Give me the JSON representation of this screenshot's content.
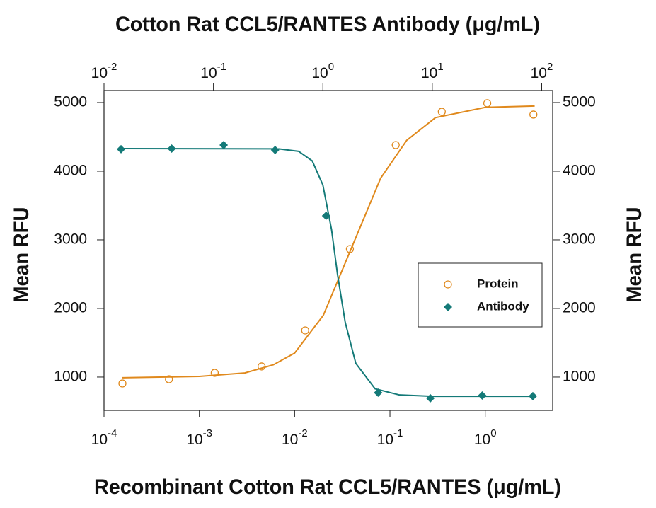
{
  "chart_data": {
    "type": "scatter",
    "title": "Cotton Rat CCL5/RANTES Antibody (μg/mL)",
    "xlabel": "Recombinant Cotton Rat CCL5/RANTES (μg/mL)",
    "ylabel": "Mean RFU",
    "y2label": "Mean RFU",
    "xscale": "log",
    "x2scale": "log",
    "xlim": [
      0.0001,
      5.1
    ],
    "xticks": [
      {
        "value": 0.0001,
        "label": "10-4"
      },
      {
        "value": 0.001,
        "label": "10-3"
      },
      {
        "value": 0.01,
        "label": "10-2"
      },
      {
        "value": 0.1,
        "label": "10-1"
      },
      {
        "value": 1,
        "label": "100"
      }
    ],
    "x2lim": [
      0.01,
      126
    ],
    "x2ticks": [
      {
        "value": 0.01,
        "label": "10-2"
      },
      {
        "value": 0.1,
        "label": "10-1"
      },
      {
        "value": 1,
        "label": "100"
      },
      {
        "value": 10,
        "label": "101"
      },
      {
        "value": 100,
        "label": "102"
      }
    ],
    "ylim": [
      515,
      5175
    ],
    "yticks": [
      1000,
      2000,
      3000,
      4000,
      5000
    ],
    "y2lim": [
      515,
      5175
    ],
    "y2ticks": [
      1000,
      2000,
      3000,
      4000,
      5000
    ],
    "legend": "center right",
    "series": [
      {
        "name": "Protein",
        "color": "#e0891c",
        "marker": "circle",
        "xaxis": "x",
        "x": [
          0.000156,
          0.00048,
          0.00145,
          0.0045,
          0.0129,
          0.038,
          0.115,
          0.35,
          1.05,
          3.2
        ],
        "values": [
          907,
          969,
          1062,
          1155,
          1680,
          2866,
          4381,
          4866,
          4990,
          4825
        ],
        "curve_x": [
          0.000156,
          0.001,
          0.003,
          0.006,
          0.01,
          0.02,
          0.04,
          0.08,
          0.15,
          0.3,
          1,
          3.3
        ],
        "curve_values": [
          990,
          1010,
          1060,
          1180,
          1350,
          1900,
          2900,
          3900,
          4450,
          4780,
          4930,
          4950
        ]
      },
      {
        "name": "Antibody",
        "color": "#147a78",
        "marker": "diamond",
        "xaxis": "x2",
        "x": [
          0.0143,
          0.0415,
          0.124,
          0.366,
          1.07,
          3.2,
          9.6,
          28.6,
          83
        ],
        "values": [
          4320,
          4330,
          4381,
          4309,
          3350,
          773,
          691,
          732,
          722
        ],
        "curve_x": [
          0.0143,
          0.4,
          0.6,
          0.8,
          1.0,
          1.2,
          1.36,
          1.6,
          2.0,
          3.0,
          5.0,
          10,
          83
        ],
        "curve_values": [
          4330,
          4325,
          4290,
          4150,
          3800,
          3150,
          2500,
          1800,
          1200,
          830,
          740,
          720,
          720
        ]
      }
    ]
  }
}
